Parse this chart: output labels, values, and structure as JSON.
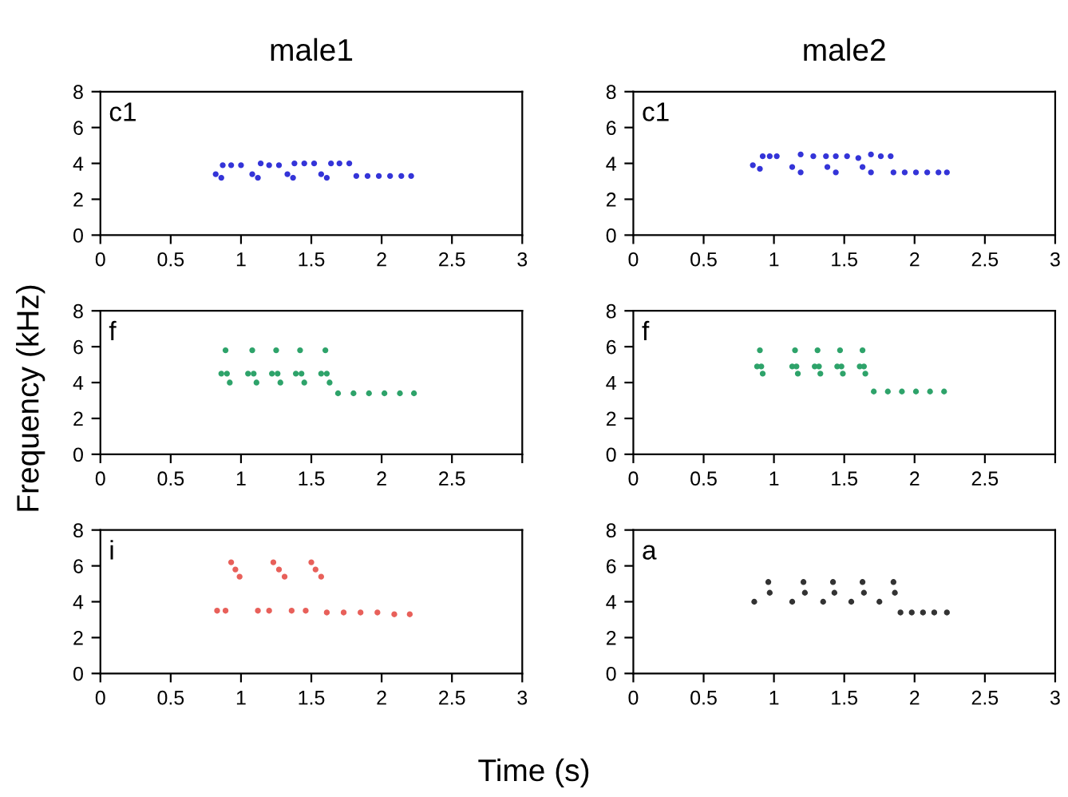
{
  "chart_data": [
    {
      "type": "scatter",
      "title": "male1",
      "annotations": [
        "c1"
      ],
      "xlim": [
        0,
        3
      ],
      "xticks": [
        0,
        0.5,
        1,
        1.5,
        2,
        2.5,
        3
      ],
      "ylim": [
        0,
        8
      ],
      "yticks": [
        0,
        2,
        4,
        6,
        8
      ],
      "marker": "circle",
      "grid": false,
      "series": [
        {
          "color": "#3434d8",
          "x": [
            0.82,
            0.86,
            0.87,
            0.93,
            1.0,
            1.08,
            1.12,
            1.14,
            1.2,
            1.27,
            1.33,
            1.37,
            1.38,
            1.45,
            1.52,
            1.57,
            1.61,
            1.64,
            1.7,
            1.77,
            1.82,
            1.9,
            1.98,
            2.06,
            2.14,
            2.21
          ],
          "values": [
            3.4,
            3.2,
            3.9,
            3.9,
            3.9,
            3.4,
            3.2,
            4.0,
            3.9,
            3.9,
            3.4,
            3.2,
            4.0,
            4.0,
            4.0,
            3.4,
            3.2,
            4.0,
            4.0,
            4.0,
            3.3,
            3.3,
            3.3,
            3.3,
            3.3,
            3.3
          ]
        }
      ]
    },
    {
      "type": "scatter",
      "title": "male2",
      "annotations": [
        "c1"
      ],
      "xlim": [
        0,
        3
      ],
      "xticks": [
        0,
        0.5,
        1,
        1.5,
        2,
        2.5,
        3
      ],
      "ylim": [
        0,
        8
      ],
      "yticks": [
        0,
        2,
        4,
        6,
        8
      ],
      "marker": "circle",
      "grid": false,
      "series": [
        {
          "color": "#3434d8",
          "x": [
            0.85,
            0.9,
            0.92,
            0.97,
            1.02,
            1.13,
            1.19,
            1.19,
            1.28,
            1.37,
            1.38,
            1.44,
            1.44,
            1.52,
            1.6,
            1.63,
            1.69,
            1.69,
            1.76,
            1.83,
            1.85,
            1.93,
            2.01,
            2.09,
            2.17,
            2.23
          ],
          "values": [
            3.9,
            3.7,
            4.4,
            4.4,
            4.4,
            3.8,
            3.5,
            4.5,
            4.4,
            4.4,
            3.8,
            3.5,
            4.4,
            4.4,
            4.3,
            3.8,
            3.5,
            4.5,
            4.4,
            4.4,
            3.5,
            3.5,
            3.5,
            3.5,
            3.5,
            3.5
          ]
        }
      ]
    },
    {
      "type": "scatter",
      "annotations": [
        "f"
      ],
      "ylabel": "Frequency (kHz)",
      "xlim": [
        0,
        3
      ],
      "xticks": [
        0,
        0.5,
        1,
        1.5,
        2,
        2.5,
        {
          "value": 3,
          "label": null
        }
      ],
      "ylim": [
        0,
        8
      ],
      "yticks": [
        0,
        2,
        4,
        6,
        8
      ],
      "marker": "circle",
      "grid": false,
      "series": [
        {
          "color": "#2ea36a",
          "x": [
            0.86,
            0.89,
            0.9,
            0.92,
            1.05,
            1.08,
            1.09,
            1.11,
            1.22,
            1.25,
            1.26,
            1.28,
            1.39,
            1.42,
            1.43,
            1.45,
            1.57,
            1.6,
            1.61,
            1.63,
            1.69,
            1.8,
            1.91,
            2.02,
            2.13,
            2.23
          ],
          "values": [
            4.5,
            5.8,
            4.5,
            4.0,
            4.5,
            5.8,
            4.5,
            4.0,
            4.5,
            5.8,
            4.5,
            4.0,
            4.5,
            5.8,
            4.5,
            4.0,
            4.5,
            5.8,
            4.5,
            4.0,
            3.4,
            3.4,
            3.4,
            3.4,
            3.4,
            3.4
          ]
        }
      ]
    },
    {
      "type": "scatter",
      "annotations": [
        "f"
      ],
      "xlim": [
        0,
        3
      ],
      "xticks": [
        0,
        0.5,
        1,
        1.5,
        2,
        2.5,
        {
          "value": 3,
          "label": null
        }
      ],
      "ylim": [
        0,
        8
      ],
      "yticks": [
        0,
        2,
        4,
        6,
        8
      ],
      "marker": "circle",
      "grid": false,
      "series": [
        {
          "color": "#2ea36a",
          "x": [
            0.88,
            0.9,
            0.91,
            0.92,
            1.13,
            1.15,
            1.16,
            1.17,
            1.29,
            1.31,
            1.32,
            1.33,
            1.45,
            1.47,
            1.48,
            1.49,
            1.61,
            1.63,
            1.64,
            1.65,
            1.71,
            1.81,
            1.91,
            2.01,
            2.11,
            2.21
          ],
          "values": [
            4.9,
            5.8,
            4.9,
            4.5,
            4.9,
            5.8,
            4.9,
            4.5,
            4.9,
            5.8,
            4.9,
            4.5,
            4.9,
            5.8,
            4.9,
            4.5,
            4.9,
            5.8,
            4.9,
            4.5,
            3.5,
            3.5,
            3.5,
            3.5,
            3.5,
            3.5
          ]
        }
      ]
    },
    {
      "type": "scatter",
      "annotations": [
        "i"
      ],
      "xlim": [
        0,
        3
      ],
      "xticks": [
        0,
        0.5,
        1,
        1.5,
        2,
        2.5,
        3
      ],
      "ylim": [
        0,
        8
      ],
      "yticks": [
        0,
        2,
        4,
        6,
        8
      ],
      "marker": "circle",
      "grid": false,
      "series": [
        {
          "color": "#e8605a",
          "x": [
            0.93,
            0.96,
            0.99,
            1.23,
            1.27,
            1.31,
            1.5,
            1.53,
            1.57,
            0.83,
            0.89,
            1.12,
            1.2,
            1.36,
            1.46,
            1.61,
            1.73,
            1.85,
            1.97,
            2.09,
            2.2
          ],
          "values": [
            6.2,
            5.8,
            5.4,
            6.2,
            5.8,
            5.4,
            6.2,
            5.8,
            5.4,
            3.5,
            3.5,
            3.5,
            3.5,
            3.5,
            3.5,
            3.4,
            3.4,
            3.4,
            3.4,
            3.3,
            3.3
          ]
        }
      ]
    },
    {
      "type": "scatter",
      "annotations": [
        "a"
      ],
      "xlabel": "Time (s)",
      "xlim": [
        0,
        3
      ],
      "xticks": [
        0,
        0.5,
        1,
        1.5,
        2,
        2.5,
        3
      ],
      "ylim": [
        0,
        8
      ],
      "yticks": [
        0,
        2,
        4,
        6,
        8
      ],
      "marker": "circle",
      "grid": false,
      "series": [
        {
          "color": "#333333",
          "x": [
            0.86,
            1.13,
            1.35,
            1.55,
            1.75,
            0.96,
            0.97,
            1.21,
            1.22,
            1.42,
            1.43,
            1.63,
            1.64,
            1.85,
            1.86,
            1.9,
            1.98,
            2.06,
            2.14,
            2.23
          ],
          "values": [
            4.0,
            4.0,
            4.0,
            4.0,
            4.0,
            5.1,
            4.5,
            5.1,
            4.5,
            5.1,
            4.5,
            5.1,
            4.5,
            5.1,
            4.5,
            3.4,
            3.4,
            3.4,
            3.4,
            3.4
          ]
        }
      ]
    }
  ]
}
